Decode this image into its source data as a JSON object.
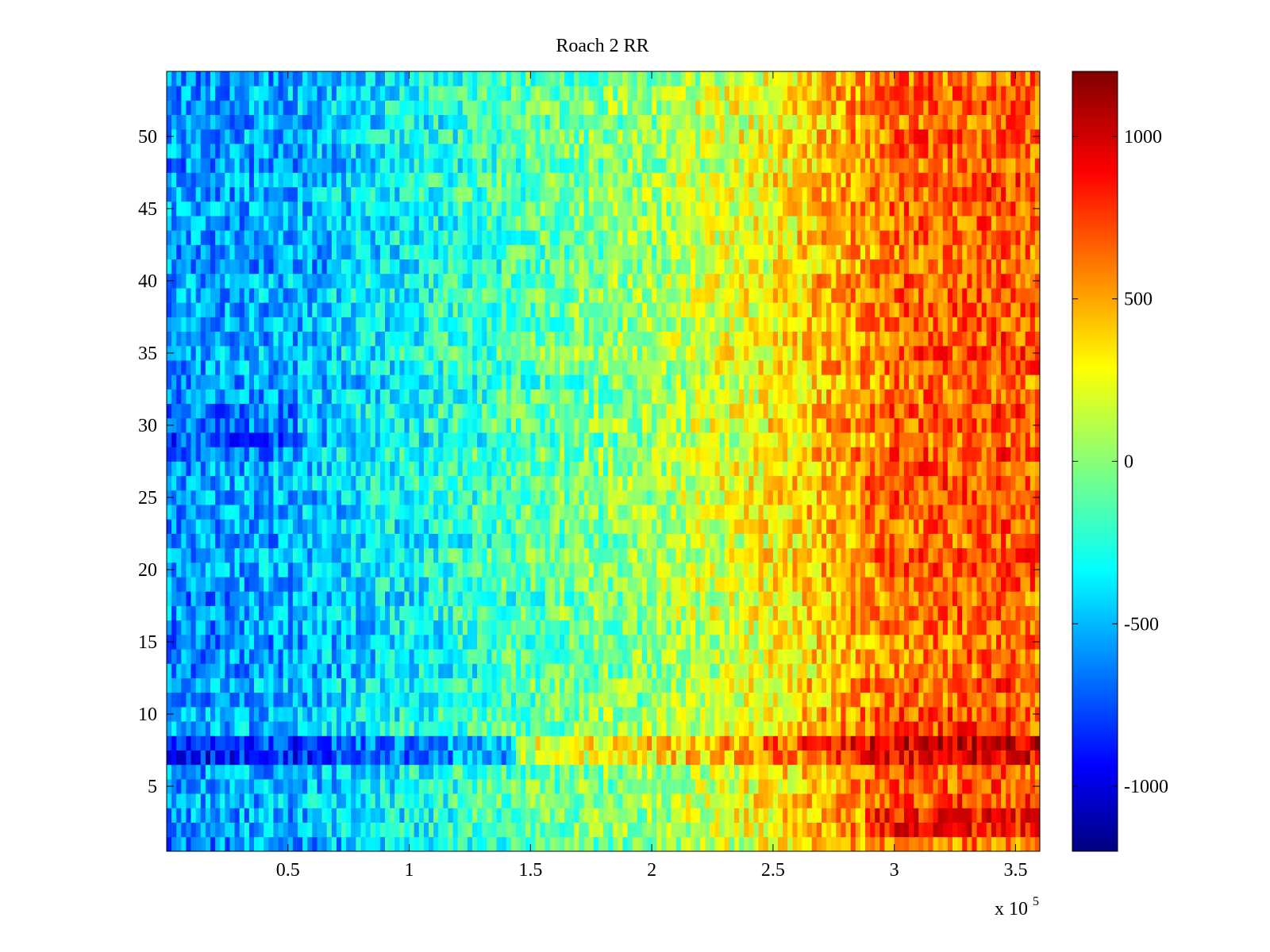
{
  "chart_data": {
    "type": "heatmap",
    "title": "Roach 2 RR",
    "xlabel": "",
    "ylabel": "",
    "x_multiplier_label": "x 10",
    "x_multiplier_exponent": "5",
    "xlim": [
      0,
      360000
    ],
    "ylim": [
      0.5,
      54.5
    ],
    "x_ticks": [
      {
        "value": 50000,
        "label": "0.5"
      },
      {
        "value": 100000,
        "label": "1"
      },
      {
        "value": 150000,
        "label": "1.5"
      },
      {
        "value": 200000,
        "label": "2"
      },
      {
        "value": 250000,
        "label": "2.5"
      },
      {
        "value": 300000,
        "label": "3"
      },
      {
        "value": 350000,
        "label": "3.5"
      }
    ],
    "y_ticks": [
      {
        "value": 5,
        "label": "5"
      },
      {
        "value": 10,
        "label": "10"
      },
      {
        "value": 15,
        "label": "15"
      },
      {
        "value": 20,
        "label": "20"
      },
      {
        "value": 25,
        "label": "25"
      },
      {
        "value": 30,
        "label": "30"
      },
      {
        "value": 35,
        "label": "35"
      },
      {
        "value": 40,
        "label": "40"
      },
      {
        "value": 45,
        "label": "45"
      },
      {
        "value": 50,
        "label": "50"
      }
    ],
    "rows": 54,
    "colormap": "jet",
    "clim": [
      -1200,
      1200
    ],
    "colorbar": {
      "position": "right",
      "ticks": [
        {
          "value": 1000,
          "label": "1000"
        },
        {
          "value": 500,
          "label": "500"
        },
        {
          "value": 0,
          "label": "0"
        },
        {
          "value": -500,
          "label": "-500"
        },
        {
          "value": -1000,
          "label": "-1000"
        }
      ]
    },
    "value_profile": {
      "x": [
        0,
        50000,
        100000,
        150000,
        200000,
        250000,
        300000,
        350000,
        360000
      ],
      "mean": [
        -550,
        -500,
        -300,
        -100,
        50,
        300,
        650,
        700,
        650
      ]
    },
    "highlight_rows": [
      {
        "y": 7,
        "note": "strongest row: darker blue on left, dark red on right"
      },
      {
        "y": 2,
        "note": "strong red on right side"
      }
    ]
  }
}
